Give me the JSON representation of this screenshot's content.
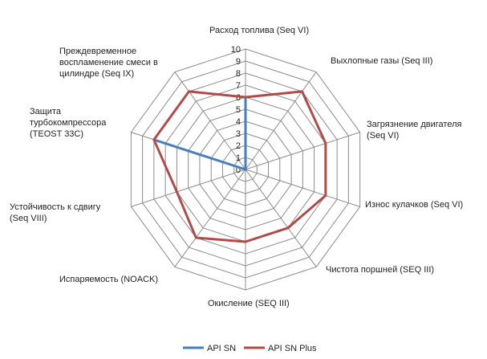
{
  "chart_data": {
    "type": "radar",
    "axes": [
      "Расход топлива (Seq VI)",
      "Выхлопные газы (Seq III)",
      "Загрязнение двигателя (Seq VI)",
      "Износ кулачков (Seq VI)",
      "Чистота поршней (SEQ III)",
      "Окисление (SEQ III)",
      "Испаряемость (NOACK)",
      "Устойчивость к сдвигу (Seq VIII)",
      "Защита турбокомпрессора (TEOST 33C)",
      "Преждевременное воспламенение смеси в цилиндре (Seq IX)"
    ],
    "r_range": [
      0,
      10
    ],
    "ticks": [
      "0",
      "1",
      "2",
      "3",
      "4",
      "5",
      "6",
      "7",
      "8",
      "9",
      "10"
    ],
    "grid": true,
    "legend_position": "bottom",
    "series": [
      {
        "name": "API SN",
        "color": "#4a7ebb",
        "values": [
          6,
          0,
          0,
          0,
          0,
          0,
          0,
          0,
          8,
          0
        ]
      },
      {
        "name": "API SN Plus",
        "color": "#b24a48",
        "values": [
          6,
          8,
          7,
          7,
          6,
          6,
          7,
          6,
          8,
          8
        ]
      }
    ]
  }
}
